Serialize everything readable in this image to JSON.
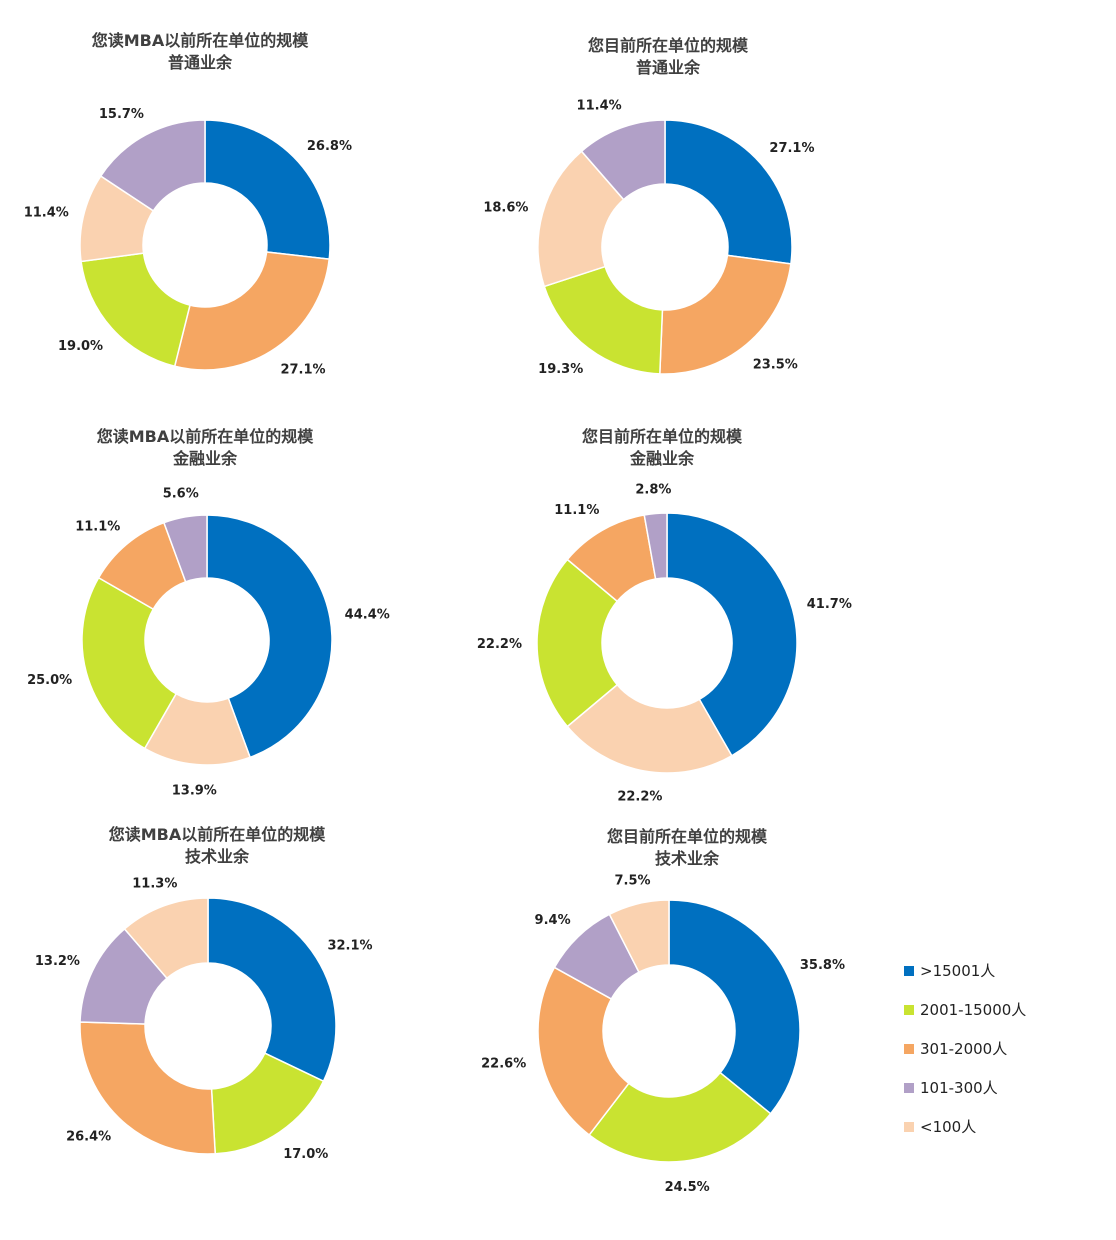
{
  "chart_data": [
    {
      "type": "donut",
      "title": [
        "您读MBA以前所在单位的规模",
        "普通业余"
      ],
      "slices": [
        {
          "category": ">15001人",
          "value": 26.8,
          "label": "26.8%"
        },
        {
          "category": "301-2000人",
          "value": 27.1,
          "label": "27.1%"
        },
        {
          "category": "2001-15000人",
          "value": 19.0,
          "label": "19.0%"
        },
        {
          "category": "<100人",
          "value": 11.4,
          "label": "11.4%"
        },
        {
          "category": "101-300人",
          "value": 15.7,
          "label": "15.7%"
        }
      ]
    },
    {
      "type": "donut",
      "title": [
        "您目前所在单位的规模",
        "普通业余"
      ],
      "slices": [
        {
          "category": ">15001人",
          "value": 27.1,
          "label": "27.1%"
        },
        {
          "category": "301-2000人",
          "value": 23.5,
          "label": "23.5%"
        },
        {
          "category": "2001-15000人",
          "value": 19.3,
          "label": "19.3%"
        },
        {
          "category": "<100人",
          "value": 18.6,
          "label": "18.6%"
        },
        {
          "category": "101-300人",
          "value": 11.4,
          "label": "11.4%"
        }
      ]
    },
    {
      "type": "donut",
      "title": [
        "您读MBA以前所在单位的规模",
        "金融业余"
      ],
      "slices": [
        {
          "category": ">15001人",
          "value": 44.4,
          "label": "44.4%"
        },
        {
          "category": "<100人",
          "value": 13.9,
          "label": "13.9%"
        },
        {
          "category": "2001-15000人",
          "value": 25.0,
          "label": "25.0%"
        },
        {
          "category": "301-2000人",
          "value": 11.1,
          "label": "11.1%"
        },
        {
          "category": "101-300人",
          "value": 5.6,
          "label": "5.6%"
        }
      ]
    },
    {
      "type": "donut",
      "title": [
        "您目前所在单位的规模",
        "金融业余"
      ],
      "slices": [
        {
          "category": ">15001人",
          "value": 41.7,
          "label": "41.7%"
        },
        {
          "category": "<100人",
          "value": 22.2,
          "label": "22.2%"
        },
        {
          "category": "2001-15000人",
          "value": 22.2,
          "label": "22.2%"
        },
        {
          "category": "301-2000人",
          "value": 11.1,
          "label": "11.1%"
        },
        {
          "category": "101-300人",
          "value": 2.8,
          "label": "2.8%"
        }
      ]
    },
    {
      "type": "donut",
      "title": [
        "您读MBA以前所在单位的规模",
        "技术业余"
      ],
      "slices": [
        {
          "category": ">15001人",
          "value": 32.1,
          "label": "32.1%"
        },
        {
          "category": "2001-15000人",
          "value": 17.0,
          "label": "17.0%"
        },
        {
          "category": "301-2000人",
          "value": 26.4,
          "label": "26.4%"
        },
        {
          "category": "101-300人",
          "value": 13.2,
          "label": "13.2%"
        },
        {
          "category": "<100人",
          "value": 11.3,
          "label": "11.3%"
        }
      ]
    },
    {
      "type": "donut",
      "title": [
        "您目前所在单位的规模",
        "技术业余"
      ],
      "slices": [
        {
          "category": ">15001人",
          "value": 35.8,
          "label": "35.8%"
        },
        {
          "category": "2001-15000人",
          "value": 24.5,
          "label": "24.5%"
        },
        {
          "category": "301-2000人",
          "value": 22.6,
          "label": "22.6%"
        },
        {
          "category": "101-300人",
          "value": 9.4,
          "label": "9.4%"
        },
        {
          "category": "<100人",
          "value": 7.5,
          "label": "7.5%"
        }
      ]
    }
  ],
  "legend": {
    "placement": "bottom-right",
    "items": [
      {
        "label": ">15001人",
        "color": "#0070C0"
      },
      {
        "label": "2001-15000人",
        "color": "#C9E331"
      },
      {
        "label": "301-2000人",
        "color": "#F5A662"
      },
      {
        "label": "101-300人",
        "color": "#B1A0C7"
      },
      {
        "label": "<100人",
        "color": "#FAD2B0"
      }
    ]
  }
}
